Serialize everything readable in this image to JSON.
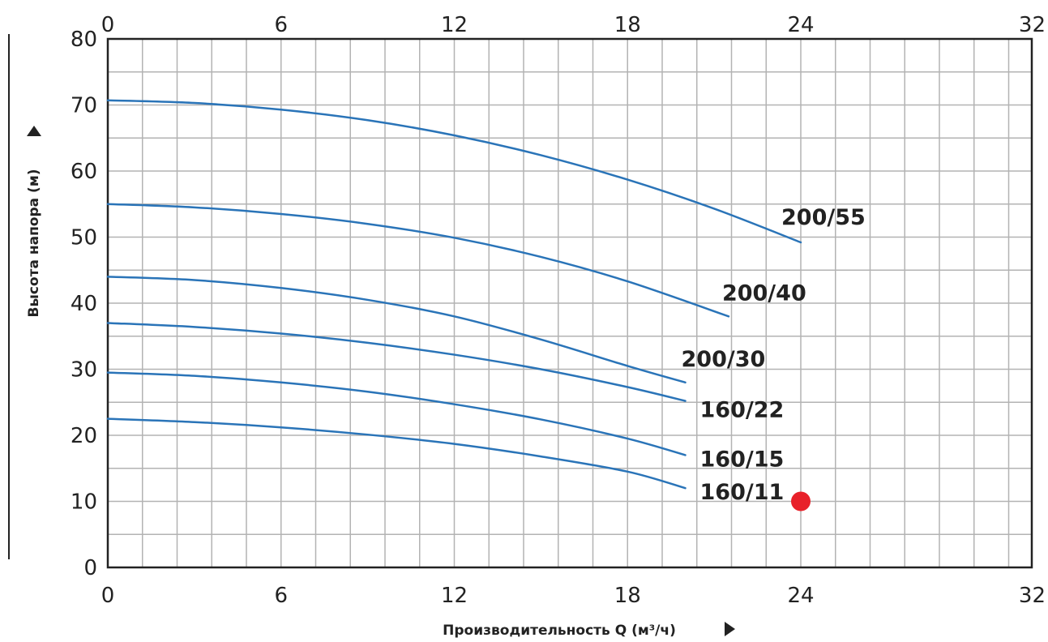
{
  "chart_data": {
    "type": "line",
    "xlabel": "Производительность Q (м³/ч)",
    "ylabel": "Высота напора (м)",
    "xlim": [
      0,
      32
    ],
    "ylim": [
      0,
      80
    ],
    "x_ticks": [
      0,
      6,
      12,
      18,
      24,
      32
    ],
    "y_ticks": [
      0,
      10,
      20,
      30,
      40,
      50,
      60,
      70,
      80
    ],
    "x_ticks_on_top": true,
    "grid": true,
    "grid_step_x": 1.2,
    "grid_step_y": 5,
    "line_color": "#2a74b8",
    "series": [
      {
        "name": "200/55",
        "x": [
          0,
          3,
          6,
          9,
          12,
          15,
          18,
          21,
          24
        ],
        "y": [
          70.7,
          70.3,
          69.3,
          67.7,
          65.4,
          62.4,
          58.7,
          54.3,
          49.2
        ]
      },
      {
        "name": "200/40",
        "x": [
          0,
          3,
          6,
          9,
          12,
          15,
          18,
          21.5
        ],
        "y": [
          55,
          54.5,
          53.5,
          52,
          49.9,
          47,
          43.3,
          38
        ]
      },
      {
        "name": "200/30",
        "x": [
          0,
          3,
          6,
          9,
          12,
          15,
          18,
          20
        ],
        "y": [
          44,
          43.5,
          42.3,
          40.5,
          38,
          34.5,
          30.5,
          28
        ]
      },
      {
        "name": "160/22",
        "x": [
          0,
          3,
          6,
          9,
          12,
          15,
          18,
          20
        ],
        "y": [
          37,
          36.4,
          35.4,
          34,
          32.2,
          30,
          27.3,
          25.2
        ]
      },
      {
        "name": "160/15",
        "x": [
          0,
          3,
          6,
          9,
          12,
          15,
          18,
          20
        ],
        "y": [
          29.5,
          29,
          28,
          26.6,
          24.7,
          22.4,
          19.5,
          17
        ]
      },
      {
        "name": "160/11",
        "x": [
          0,
          3,
          6,
          9,
          12,
          15,
          18,
          20
        ],
        "y": [
          22.5,
          22,
          21.2,
          20.1,
          18.7,
          16.8,
          14.5,
          12
        ]
      }
    ],
    "marker": {
      "x": 24,
      "y": 10,
      "color": "#e8212a"
    }
  }
}
